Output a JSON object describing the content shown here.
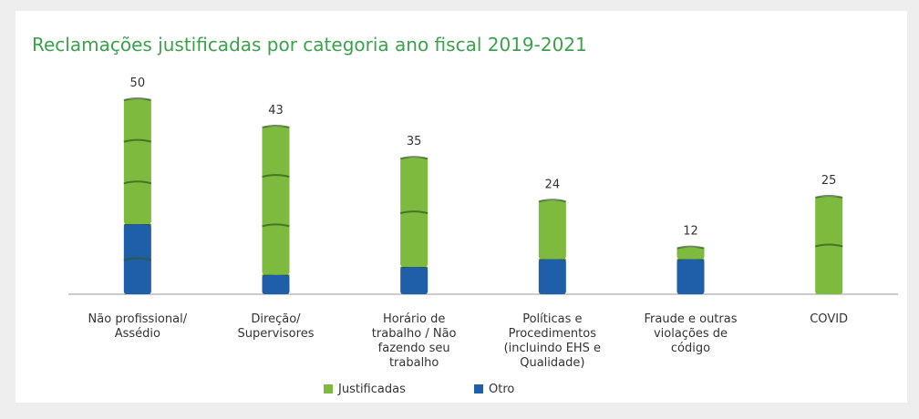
{
  "chart_data": {
    "type": "stacked-bar",
    "title": "Reclamações justificadas por categoria ano fiscal 2019-2021",
    "categories": [
      "Não profissional/ Assédio",
      "Direção/ Supervisores",
      "Horário de trabalho / Não fazendo seu trabalho",
      "Políticas e Procedimentos (incluindo EHS e Qualidade)",
      "Fraude e outras violações de código",
      "COVID"
    ],
    "series": [
      {
        "name": "Otro",
        "color": "#1f5ea8",
        "values": [
          18,
          5,
          7,
          9,
          9,
          0
        ]
      },
      {
        "name": "Justificadas",
        "color": "#7dba3e",
        "values": [
          32,
          38,
          28,
          15,
          3,
          25
        ]
      }
    ],
    "totals": [
      50,
      43,
      35,
      24,
      12,
      25
    ],
    "ylim": [
      0,
      50
    ]
  }
}
